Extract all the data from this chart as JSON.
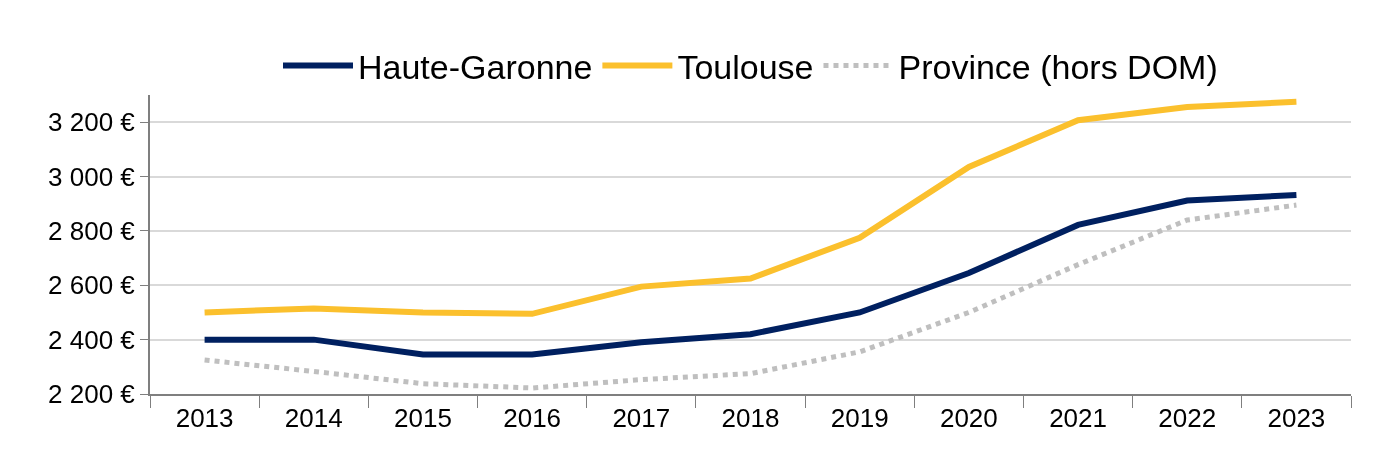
{
  "chart_data": {
    "type": "line",
    "categories": [
      "2013",
      "2014",
      "2015",
      "2016",
      "2017",
      "2018",
      "2019",
      "2020",
      "2021",
      "2022",
      "2023"
    ],
    "series": [
      {
        "name": "Haute-Garonne",
        "color": "#002060",
        "line_style": "solid",
        "values": [
          2400,
          2400,
          2345,
          2345,
          2390,
          2420,
          2500,
          2645,
          2822,
          2912,
          2932
        ]
      },
      {
        "name": "Toulouse",
        "color": "#fbc02d",
        "line_style": "solid",
        "values": [
          2500,
          2515,
          2500,
          2495,
          2595,
          2625,
          2775,
          3035,
          3207,
          3256,
          3275
        ]
      },
      {
        "name": "Province (hors DOM)",
        "color": "#bfbfbf",
        "line_style": "dotted",
        "values": [
          2325,
          2283,
          2238,
          2222,
          2253,
          2275,
          2355,
          2500,
          2676,
          2840,
          2895
        ]
      }
    ],
    "ylim": [
      2200,
      3300
    ],
    "yticks": [
      {
        "value": 2200,
        "label": "2 200 €"
      },
      {
        "value": 2400,
        "label": "2 400 €"
      },
      {
        "value": 2600,
        "label": "2 600 €"
      },
      {
        "value": 2800,
        "label": "2 800 €"
      },
      {
        "value": 3000,
        "label": "3 000 €"
      },
      {
        "value": 3200,
        "label": "3 200 €"
      }
    ],
    "grid": "y",
    "legend": "top",
    "marker": "none"
  }
}
